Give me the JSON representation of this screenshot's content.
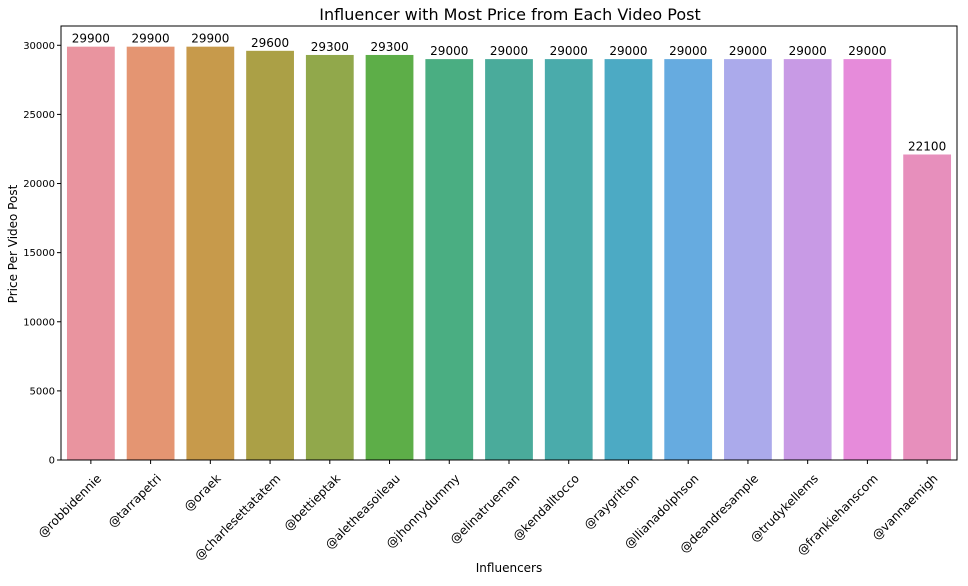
{
  "chart_data": {
    "type": "bar",
    "title": "Influencer with Most Price from Each Video Post",
    "xlabel": "Influencers",
    "ylabel": "Price Per Video Post",
    "ylim": [
      0,
      31395
    ],
    "yticks": [
      0,
      5000,
      10000,
      15000,
      20000,
      25000,
      30000
    ],
    "grid": false,
    "legend": "none",
    "categories": [
      "@robbidennie",
      "@tarrapetri",
      "@oraek",
      "@charlesettatatem",
      "@bettieptak",
      "@aletheasoileau",
      "@jhonnydummy",
      "@elinatrueman",
      "@kendalltocco",
      "@raygritton",
      "@llianadolphson",
      "@deandresample",
      "@trudykellems",
      "@frankiehanscom",
      "@vannaemigh"
    ],
    "values": [
      29900,
      29900,
      29900,
      29600,
      29300,
      29300,
      29000,
      29000,
      29000,
      29000,
      29000,
      29000,
      29000,
      29000,
      22100
    ],
    "data_labels": [
      "29900",
      "29900",
      "29900",
      "29600",
      "29300",
      "29300",
      "29000",
      "29000",
      "29000",
      "29000",
      "29000",
      "29000",
      "29000",
      "29000",
      "22100"
    ],
    "colors": [
      "#e9949f",
      "#e49572",
      "#c79a4b",
      "#aba046",
      "#91a84b",
      "#5dae48",
      "#4aae82",
      "#4aab9b",
      "#4aabab",
      "#4caac4",
      "#66abe0",
      "#abaaeb",
      "#c89ae5",
      "#e68bda",
      "#e78fbc"
    ]
  }
}
